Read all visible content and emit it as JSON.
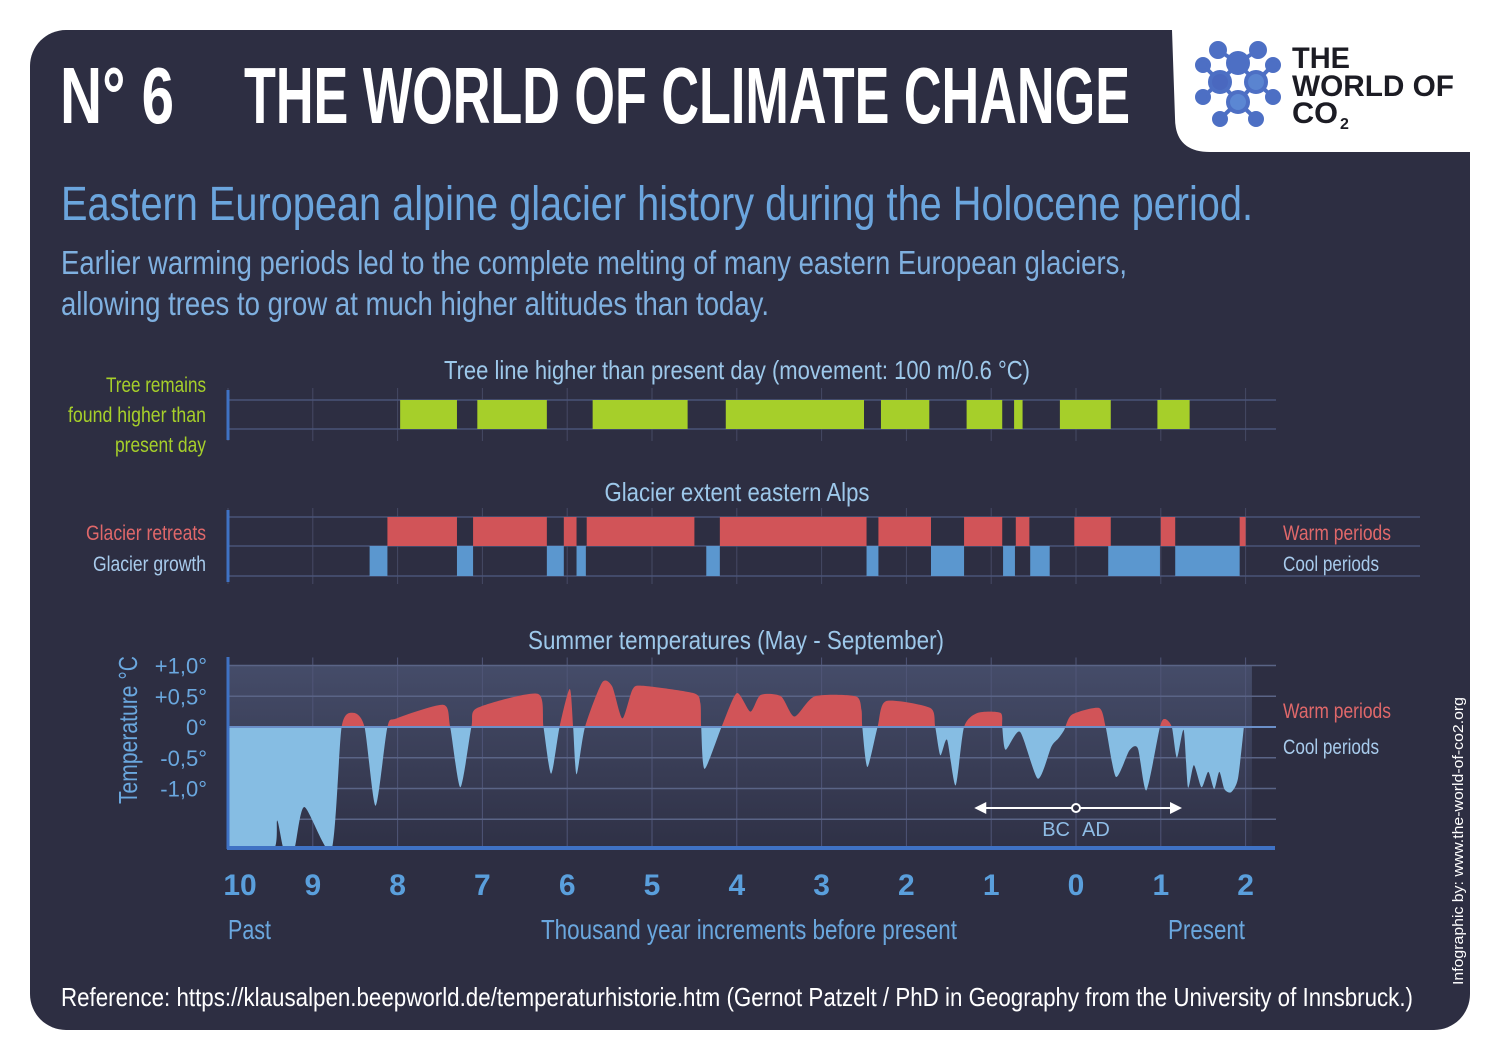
{
  "header": {
    "number": "N° 6",
    "title": "THE WORLD OF CLIMATE CHANGE",
    "logo_text": [
      "THE",
      "WORLD OF",
      "CO",
      "2"
    ],
    "subtitle": "Eastern European alpine glacier history during the Holocene period.",
    "description_lines": [
      "Earlier warming periods led to the complete melting of many eastern European glaciers,",
      "allowing trees to grow at much higher altitudes than today."
    ]
  },
  "colors": {
    "background": "#2d2e42",
    "tree": "#a6cf2a",
    "warm": "#d15458",
    "cool_bar": "#5b97cf",
    "cool_fill": "#86bde3",
    "accent_text": "#6aa7de"
  },
  "chart_data": [
    {
      "type": "bar",
      "subtype": "timeline-intervals",
      "title": "Tree line higher than present day (movement: 100 m/0.6 °C)",
      "row_label": [
        "Tree remains",
        "found higher than",
        "present day"
      ],
      "x_unit": "thousand years (BC negative, AD positive)",
      "xlim": [
        -10,
        2
      ],
      "intervals": [
        [
          -7.97,
          -7.3
        ],
        [
          -7.06,
          -6.24
        ],
        [
          -5.7,
          -4.58
        ],
        [
          -4.13,
          -2.5
        ],
        [
          -2.3,
          -1.73
        ],
        [
          -1.29,
          -0.87
        ],
        [
          -0.73,
          -0.63
        ],
        [
          -0.19,
          0.41
        ],
        [
          0.96,
          1.34
        ]
      ]
    },
    {
      "type": "bar",
      "subtype": "timeline-intervals",
      "title": "Glacier extent eastern Alps",
      "xlim": [
        -10,
        2
      ],
      "series": [
        {
          "name": "Glacier retreats",
          "right_label": "Warm periods",
          "color": "#d15458",
          "intervals": [
            [
              -8.12,
              -7.3
            ],
            [
              -7.11,
              -6.24
            ],
            [
              -6.04,
              -5.89
            ],
            [
              -5.77,
              -4.5
            ],
            [
              -4.2,
              -2.47
            ],
            [
              -2.33,
              -1.71
            ],
            [
              -1.32,
              -0.87
            ],
            [
              -0.71,
              -0.55
            ],
            [
              -0.02,
              0.41
            ],
            [
              1.0,
              1.17
            ],
            [
              1.93,
              2.0
            ]
          ]
        },
        {
          "name": "Glacier growth",
          "right_label": "Cool periods",
          "color": "#5b97cf",
          "intervals": [
            [
              -8.33,
              -8.12
            ],
            [
              -7.3,
              -7.11
            ],
            [
              -6.24,
              -6.04
            ],
            [
              -5.89,
              -5.78
            ],
            [
              -4.36,
              -4.2
            ],
            [
              -2.47,
              -2.33
            ],
            [
              -1.71,
              -1.32
            ],
            [
              -0.86,
              -0.72
            ],
            [
              -0.54,
              -0.31
            ],
            [
              0.38,
              0.99
            ],
            [
              1.17,
              1.93
            ]
          ]
        }
      ]
    },
    {
      "type": "area",
      "title": "Summer temperatures (May - September)",
      "ylabel": "Temperature °C",
      "ylim": [
        -1.95,
        1.0
      ],
      "xlim": [
        -10,
        2
      ],
      "yticks": [
        {
          "v": 1.0,
          "label": "+1,0°"
        },
        {
          "v": 0.5,
          "label": "+0,5°"
        },
        {
          "v": 0,
          "label": "0°"
        },
        {
          "v": -0.5,
          "label": "-0,5°"
        },
        {
          "v": -1.0,
          "label": "-1,0°"
        }
      ],
      "right_labels": {
        "warm": "Warm periods",
        "cool": "Cool periods"
      },
      "points": [
        [
          -10.0,
          -2.0
        ],
        [
          -9.47,
          -2.0
        ],
        [
          -9.42,
          -1.52
        ],
        [
          -9.34,
          -2.0
        ],
        [
          -9.22,
          -2.0
        ],
        [
          -9.1,
          -1.3
        ],
        [
          -8.78,
          -2.0
        ],
        [
          -8.66,
          0
        ],
        [
          -8.52,
          0.23
        ],
        [
          -8.39,
          0
        ],
        [
          -8.26,
          -1.28
        ],
        [
          -8.12,
          0
        ],
        [
          -8.01,
          0.14
        ],
        [
          -7.46,
          0.36
        ],
        [
          -7.38,
          0
        ],
        [
          -7.26,
          -0.98
        ],
        [
          -7.13,
          0
        ],
        [
          -7.06,
          0.31
        ],
        [
          -6.35,
          0.54
        ],
        [
          -6.28,
          0
        ],
        [
          -6.19,
          -0.76
        ],
        [
          -6.09,
          0
        ],
        [
          -5.97,
          0.62
        ],
        [
          -5.93,
          0
        ],
        [
          -5.89,
          -0.77
        ],
        [
          -5.79,
          0
        ],
        [
          -5.59,
          0.72
        ],
        [
          -5.47,
          0.66
        ],
        [
          -5.35,
          0.14
        ],
        [
          -5.23,
          0.61
        ],
        [
          -5.11,
          0.67
        ],
        [
          -4.51,
          0.55
        ],
        [
          -4.43,
          0.39
        ],
        [
          -4.42,
          0
        ],
        [
          -4.38,
          -0.68
        ],
        [
          -4.18,
          0
        ],
        [
          -4.0,
          0.55
        ],
        [
          -3.84,
          0.25
        ],
        [
          -3.72,
          0.52
        ],
        [
          -3.48,
          0.5
        ],
        [
          -3.32,
          0.17
        ],
        [
          -3.08,
          0.5
        ],
        [
          -2.6,
          0.5
        ],
        [
          -2.53,
          0.28
        ],
        [
          -2.52,
          0
        ],
        [
          -2.46,
          -0.65
        ],
        [
          -2.34,
          0
        ],
        [
          -2.24,
          0.42
        ],
        [
          -1.72,
          0.31
        ],
        [
          -1.66,
          0
        ],
        [
          -1.6,
          -0.46
        ],
        [
          -1.52,
          -0.21
        ],
        [
          -1.42,
          -0.95
        ],
        [
          -1.32,
          0
        ],
        [
          -1.16,
          0.23
        ],
        [
          -0.89,
          0.23
        ],
        [
          -0.87,
          0
        ],
        [
          -0.83,
          -0.37
        ],
        [
          -0.66,
          -0.08
        ],
        [
          -0.45,
          -0.84
        ],
        [
          -0.29,
          -0.32
        ],
        [
          -0.21,
          -0.19
        ],
        [
          -0.14,
          -0.05
        ],
        [
          -0.05,
          0.2
        ],
        [
          0.27,
          0.31
        ],
        [
          0.35,
          0
        ],
        [
          0.47,
          -0.81
        ],
        [
          0.63,
          -0.38
        ],
        [
          0.73,
          -0.35
        ],
        [
          0.83,
          -1.03
        ],
        [
          0.99,
          0
        ],
        [
          1.05,
          0.13
        ],
        [
          1.13,
          0
        ],
        [
          1.19,
          -0.5
        ],
        [
          1.27,
          -0.05
        ],
        [
          1.32,
          -0.98
        ],
        [
          1.39,
          -0.62
        ],
        [
          1.48,
          -0.98
        ],
        [
          1.56,
          -0.73
        ],
        [
          1.63,
          -1.01
        ],
        [
          1.69,
          -0.73
        ],
        [
          1.75,
          -1.01
        ],
        [
          1.83,
          -1.06
        ],
        [
          1.91,
          -0.84
        ],
        [
          1.98,
          0
        ]
      ],
      "era_marker": {
        "from": -1.2,
        "to": 1.25,
        "at": 0,
        "labels": [
          "BC",
          "AD"
        ]
      }
    }
  ],
  "x_axis": {
    "ticks": [
      {
        "v": -10,
        "label": "10"
      },
      {
        "v": -9,
        "label": "9"
      },
      {
        "v": -8,
        "label": "8"
      },
      {
        "v": -7,
        "label": "7"
      },
      {
        "v": -6,
        "label": "6"
      },
      {
        "v": -5,
        "label": "5"
      },
      {
        "v": -4,
        "label": "4"
      },
      {
        "v": -3,
        "label": "3"
      },
      {
        "v": -2,
        "label": "2"
      },
      {
        "v": -1,
        "label": "1"
      },
      {
        "v": 0,
        "label": "0"
      },
      {
        "v": 1,
        "label": "1"
      },
      {
        "v": 2,
        "label": "2"
      }
    ],
    "left_label": "Past",
    "center_label": "Thousand year increments before present",
    "right_label": "Present"
  },
  "footer": {
    "reference": "Reference: https://klausalpen.beepworld.de/temperaturhistorie.htm (Gernot Patzelt / PhD in Geography from the University of Innsbruck.)",
    "credit": "Infographic by: www.the-world-of-co2.org"
  }
}
